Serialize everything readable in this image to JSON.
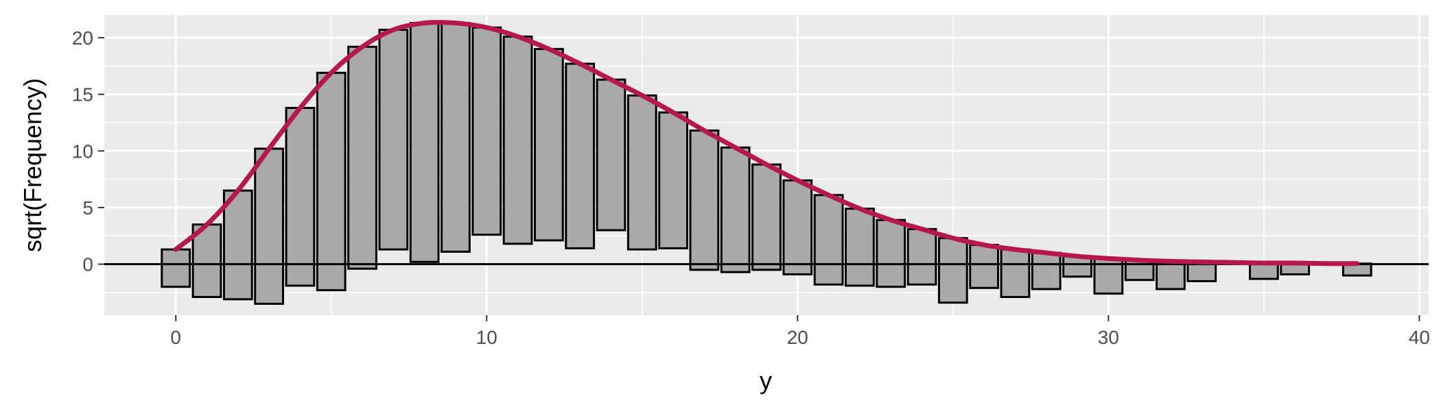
{
  "chart_data": {
    "type": "bar",
    "subtype": "hanging rootogram",
    "xlabel": "y",
    "ylabel": "sqrt(Frequency)",
    "xlim": [
      -2.3,
      40.3
    ],
    "ylim": [
      -4.5,
      22.0
    ],
    "x_ticks": [
      0,
      10,
      20,
      30,
      40
    ],
    "y_ticks": [
      0,
      5,
      10,
      15,
      20
    ],
    "grid": true,
    "legend": "none",
    "colors": {
      "panel_background": "#ebebeb",
      "gridline": "#ffffff",
      "bar_fill": "#a9a9a9",
      "bar_outline": "#000000",
      "curve": "#b5174f",
      "reference_line": "#000000"
    },
    "bars": {
      "x": [
        0,
        1,
        2,
        3,
        4,
        5,
        6,
        7,
        8,
        9,
        10,
        11,
        12,
        13,
        14,
        15,
        16,
        17,
        18,
        19,
        20,
        21,
        22,
        23,
        24,
        25,
        26,
        27,
        28,
        29,
        30,
        31,
        32,
        33,
        35,
        36,
        38
      ],
      "top": [
        1.3,
        3.5,
        6.5,
        10.2,
        13.8,
        16.9,
        19.2,
        20.7,
        21.3,
        21.3,
        20.9,
        20.1,
        19.0,
        17.7,
        16.3,
        14.9,
        13.4,
        11.8,
        10.3,
        8.8,
        7.4,
        6.1,
        4.9,
        3.9,
        3.1,
        2.3,
        1.7,
        1.3,
        1.0,
        0.7,
        0.5,
        0.35,
        0.25,
        0.2,
        0.1,
        0.1,
        0.05
      ],
      "bottom": [
        -2.0,
        -2.9,
        -3.1,
        -3.5,
        -1.9,
        -2.3,
        -0.4,
        1.3,
        0.2,
        1.1,
        2.6,
        1.8,
        2.1,
        1.4,
        3.0,
        1.3,
        1.4,
        -0.5,
        -0.7,
        -0.5,
        -0.9,
        -1.8,
        -1.9,
        -2.0,
        -1.8,
        -3.4,
        -2.1,
        -2.9,
        -2.2,
        -1.1,
        -2.6,
        -1.4,
        -2.2,
        -1.5,
        -1.3,
        -0.9,
        -1.0
      ]
    },
    "curve": {
      "x": [
        0,
        1,
        2,
        3,
        4,
        5,
        6,
        7,
        8,
        9,
        10,
        11,
        12,
        13,
        14,
        15,
        16,
        17,
        18,
        19,
        20,
        21,
        22,
        23,
        24,
        25,
        26,
        27,
        28,
        29,
        30,
        31,
        32,
        33,
        34,
        35,
        36,
        37,
        38
      ],
      "y": [
        1.3,
        3.5,
        6.5,
        10.2,
        13.8,
        16.9,
        19.2,
        20.7,
        21.3,
        21.3,
        20.9,
        20.1,
        19.0,
        17.7,
        16.3,
        14.9,
        13.4,
        11.8,
        10.3,
        8.8,
        7.4,
        6.1,
        4.9,
        3.9,
        3.1,
        2.3,
        1.7,
        1.3,
        1.0,
        0.7,
        0.5,
        0.35,
        0.25,
        0.2,
        0.15,
        0.1,
        0.1,
        0.05,
        0.05
      ]
    },
    "reference_line_y": 0
  }
}
